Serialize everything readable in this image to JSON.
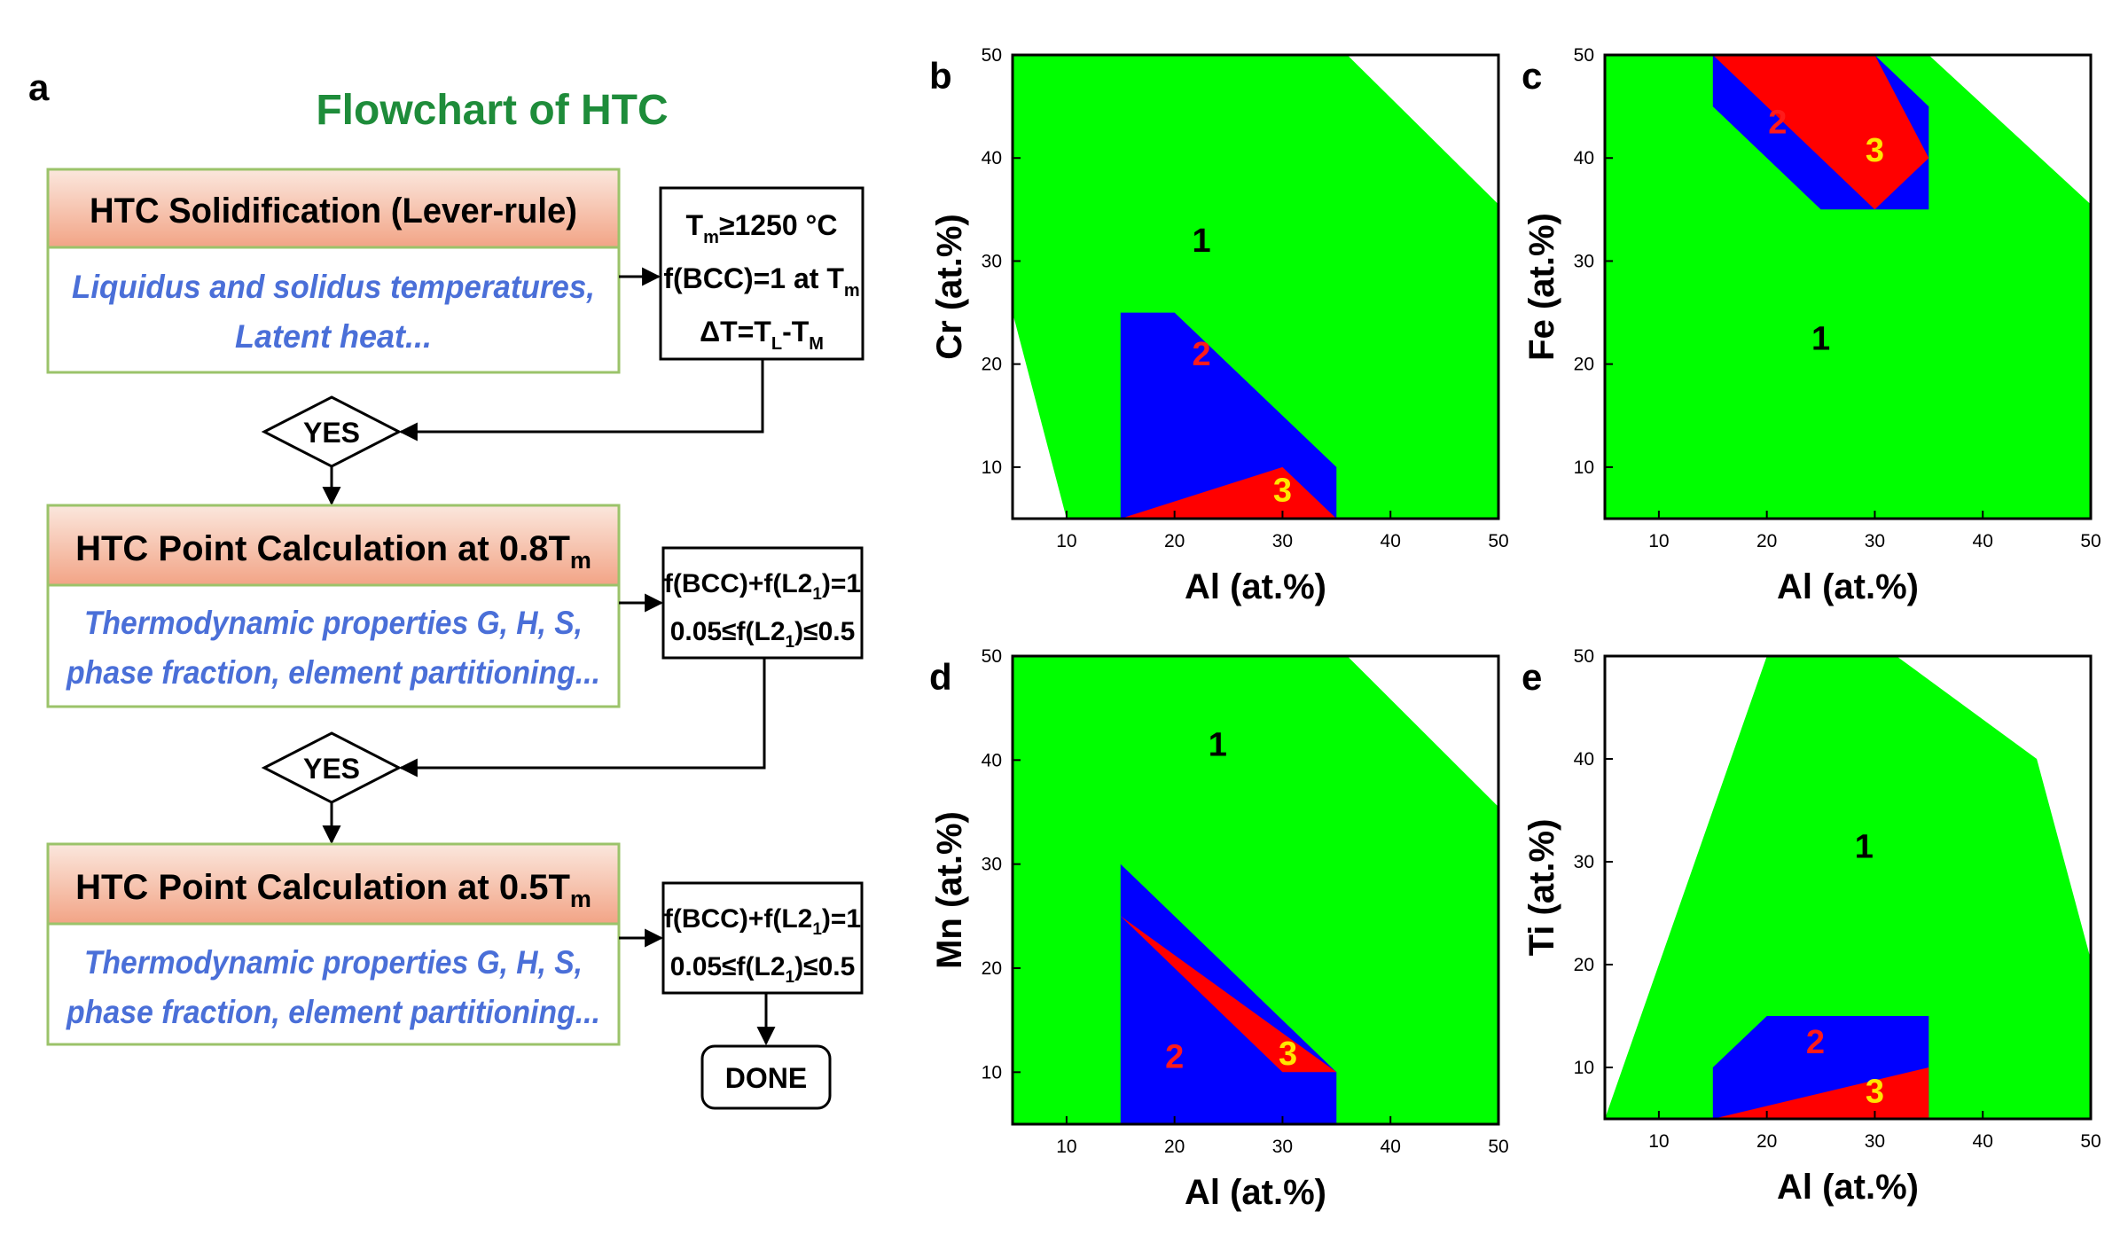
{
  "flowchart": {
    "panel_label": "a",
    "title": "Flowchart of HTC",
    "steps": [
      {
        "header": "HTC Solidification (Lever-rule)",
        "body": [
          "Liquidus and solidus temperatures,",
          "Latent heat..."
        ],
        "criteria": [
          {
            "segs": [
              {
                "t": "T"
              },
              {
                "t": "m",
                "s": "sub"
              },
              {
                "t": "≥1250 °C"
              }
            ]
          },
          {
            "segs": [
              {
                "t": "f(BCC)=1 at T"
              },
              {
                "t": "m",
                "s": "sub"
              }
            ]
          },
          {
            "segs": [
              {
                "t": "ΔT=T"
              },
              {
                "t": "L",
                "s": "sub"
              },
              {
                "t": "-T"
              },
              {
                "t": "M",
                "s": "sub"
              }
            ]
          }
        ]
      },
      {
        "header": "HTC Point Calculation at 0.8T",
        "header_sub": "m",
        "body": [
          "Thermodynamic properties G, H, S,",
          "phase fraction, element partitioning..."
        ],
        "criteria": [
          {
            "segs": [
              {
                "t": "f(BCC)+f(L2"
              },
              {
                "t": "1",
                "s": "sub"
              },
              {
                "t": ")=1"
              }
            ]
          },
          {
            "segs": [
              {
                "t": "0.05≤f(L2"
              },
              {
                "t": "1",
                "s": "sub"
              },
              {
                "t": ")≤0.5"
              }
            ]
          }
        ]
      },
      {
        "header": "HTC Point Calculation at 0.5T",
        "header_sub": "m",
        "body": [
          "Thermodynamic properties G, H, S,",
          "phase fraction, element partitioning..."
        ],
        "criteria": [
          {
            "segs": [
              {
                "t": "f(BCC)+f(L2"
              },
              {
                "t": "1",
                "s": "sub"
              },
              {
                "t": ")=1"
              }
            ]
          },
          {
            "segs": [
              {
                "t": "0.05≤f(L2"
              },
              {
                "t": "1",
                "s": "sub"
              },
              {
                "t": ")≤0.5"
              }
            ]
          }
        ]
      }
    ],
    "decision_label": "YES",
    "done_label": "DONE",
    "colors": {
      "title": "#1e8c3a",
      "body_text": "#4a6fd8",
      "box_border": "#9bc36a",
      "header_top": "#fbe7dd",
      "header_bottom": "#f2a486"
    }
  },
  "chart_data": [
    {
      "panel_label": "b",
      "type": "area",
      "xlabel": "Al (at.%)",
      "ylabel": "Cr (at.%)",
      "xlim": [
        5,
        50
      ],
      "ylim": [
        5,
        50
      ],
      "xticks": [
        10,
        20,
        30,
        40,
        50
      ],
      "yticks": [
        10,
        20,
        30,
        40,
        50
      ],
      "regions": [
        {
          "name": "1",
          "color": "#00ff00",
          "label_at": [
            22.5,
            32
          ],
          "points": [
            [
              5,
              50
            ],
            [
              36,
              50
            ],
            [
              50,
              35.5
            ],
            [
              50,
              5
            ],
            [
              10,
              5
            ],
            [
              5,
              25
            ]
          ]
        },
        {
          "name": "2",
          "color": "#0000ff",
          "label_at": [
            22.5,
            21
          ],
          "points": [
            [
              15,
              25
            ],
            [
              20,
              25
            ],
            [
              35,
              10
            ],
            [
              35,
              5
            ],
            [
              15,
              5
            ]
          ]
        },
        {
          "name": "3",
          "color": "#ff0000",
          "label_at": [
            30,
            7.8
          ],
          "points": [
            [
              15,
              5
            ],
            [
              30,
              10
            ],
            [
              35,
              5
            ]
          ]
        }
      ]
    },
    {
      "panel_label": "c",
      "type": "area",
      "xlabel": "Al (at.%)",
      "ylabel": "Fe (at.%)",
      "xlim": [
        5,
        50
      ],
      "ylim": [
        5,
        50
      ],
      "xticks": [
        10,
        20,
        30,
        40,
        50
      ],
      "yticks": [
        10,
        20,
        30,
        40,
        50
      ],
      "regions": [
        {
          "name": "1",
          "color": "#00ff00",
          "label_at": [
            25,
            22.5
          ],
          "points": [
            [
              5,
              50
            ],
            [
              35,
              50
            ],
            [
              50,
              35.5
            ],
            [
              50,
              5
            ],
            [
              5,
              5
            ]
          ]
        },
        {
          "name": "2",
          "color": "#0000ff",
          "label_at": [
            21,
            43.5
          ],
          "points": [
            [
              15,
              50
            ],
            [
              30,
              50
            ],
            [
              35,
              45
            ],
            [
              35,
              35
            ],
            [
              25,
              35
            ],
            [
              15,
              45
            ]
          ]
        },
        {
          "name": "3",
          "color": "#ff0000",
          "label_at": [
            30,
            40.8
          ],
          "points": [
            [
              15,
              50
            ],
            [
              30,
              50
            ],
            [
              35,
              40
            ],
            [
              30,
              35
            ]
          ]
        }
      ]
    },
    {
      "panel_label": "d",
      "type": "area",
      "xlabel": "Al (at.%)",
      "ylabel": "Mn (at.%)",
      "xlim": [
        5,
        50
      ],
      "ylim": [
        5,
        50
      ],
      "xticks": [
        10,
        20,
        30,
        40,
        50
      ],
      "yticks": [
        10,
        20,
        30,
        40,
        50
      ],
      "regions": [
        {
          "name": "1",
          "color": "#00ff00",
          "label_at": [
            24,
            41.5
          ],
          "points": [
            [
              5,
              50
            ],
            [
              36,
              50
            ],
            [
              50,
              35.5
            ],
            [
              50,
              5
            ],
            [
              5,
              5
            ]
          ]
        },
        {
          "name": "2",
          "color": "#0000ff",
          "label_at": [
            20,
            11.5
          ],
          "points": [
            [
              15,
              30
            ],
            [
              35,
              10
            ],
            [
              35,
              5
            ],
            [
              15,
              5
            ]
          ]
        },
        {
          "name": "3",
          "color": "#ff0000",
          "label_at": [
            30.5,
            11.8
          ],
          "points": [
            [
              15,
              25
            ],
            [
              30,
              10
            ],
            [
              35,
              10
            ]
          ]
        }
      ]
    },
    {
      "panel_label": "e",
      "type": "area",
      "xlabel": "Al (at.%)",
      "ylabel": "Ti (at.%)",
      "xlim": [
        5,
        50
      ],
      "ylim": [
        5,
        50
      ],
      "xticks": [
        10,
        20,
        30,
        40,
        50
      ],
      "yticks": [
        10,
        20,
        30,
        40,
        50
      ],
      "regions": [
        {
          "name": "1",
          "color": "#00ff00",
          "label_at": [
            29,
            31.5
          ],
          "points": [
            [
              5,
              5
            ],
            [
              20,
              50
            ],
            [
              32,
              50
            ],
            [
              45,
              40
            ],
            [
              50,
              20.5
            ],
            [
              50,
              5
            ]
          ]
        },
        {
          "name": "2",
          "color": "#0000ff",
          "label_at": [
            24.5,
            12.5
          ],
          "points": [
            [
              15,
              10
            ],
            [
              20,
              15
            ],
            [
              35,
              15
            ],
            [
              35,
              5
            ],
            [
              15,
              5
            ]
          ]
        },
        {
          "name": "3",
          "color": "#ff0000",
          "label_at": [
            30,
            7.7
          ],
          "points": [
            [
              15,
              5
            ],
            [
              35,
              10
            ],
            [
              35,
              5
            ]
          ]
        }
      ]
    }
  ],
  "label_colors": {
    "1": "#000000",
    "2": "#ff1a1a",
    "3": "#ffe600"
  }
}
